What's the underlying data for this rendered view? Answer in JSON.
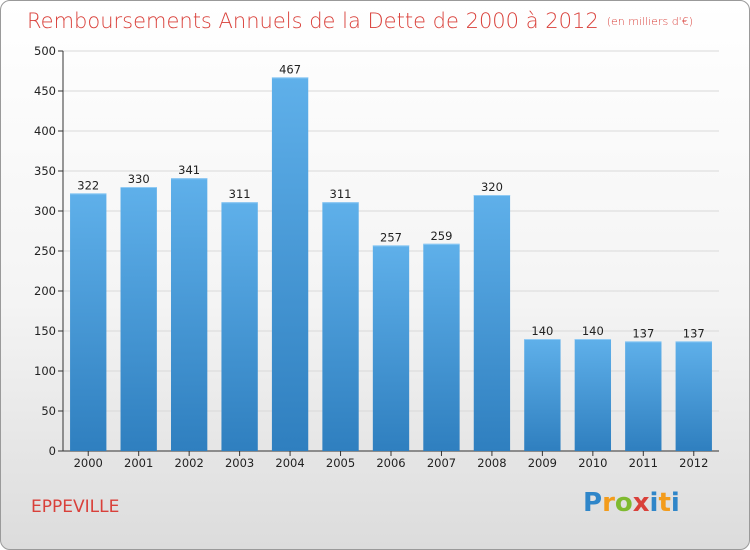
{
  "page": {
    "title": "Remboursements Annuels de la Dette de 2000 à 2012",
    "unit": "(en milliers d'€)",
    "commune": "EPPEVILLE",
    "logo_text": "Proxiti"
  },
  "colors": {
    "title": "#d9403a",
    "bar_top": "#5fb0ea",
    "bar_bottom": "#2f7fbf",
    "grid": "#d9d9d9"
  },
  "chart_data": {
    "type": "bar",
    "categories": [
      "2000",
      "2001",
      "2002",
      "2003",
      "2004",
      "2005",
      "2006",
      "2007",
      "2008",
      "2009",
      "2010",
      "2011",
      "2012"
    ],
    "values": [
      322,
      330,
      341,
      311,
      467,
      311,
      257,
      259,
      320,
      140,
      140,
      137,
      137
    ],
    "data_labels": [
      "322",
      "330",
      "341",
      "311",
      "467",
      "311",
      "257",
      "259",
      "320",
      "140",
      "140",
      "137",
      "137"
    ],
    "y_ticks": [
      0,
      50,
      100,
      150,
      200,
      250,
      300,
      350,
      400,
      450,
      500
    ],
    "ylim": [
      0,
      500
    ],
    "grid": true,
    "legend": "none"
  }
}
